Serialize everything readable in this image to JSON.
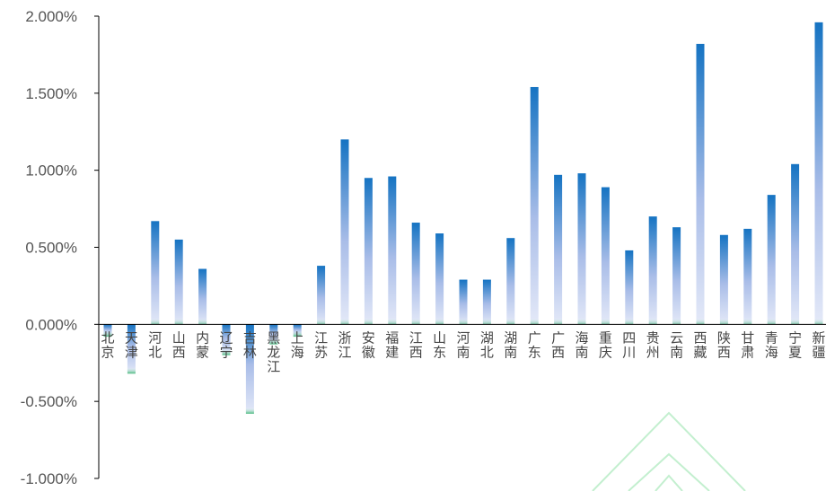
{
  "chart_data": {
    "type": "bar",
    "title": "",
    "xlabel": "",
    "ylabel": "",
    "ylim": [
      -1.0,
      2.0
    ],
    "y_ticks": [
      "2.000%",
      "1.500%",
      "1.000%",
      "0.500%",
      "0.000%",
      "-0.500%",
      "-1.000%"
    ],
    "y_tick_values": [
      2.0,
      1.5,
      1.0,
      0.5,
      0.0,
      -0.5,
      -1.0
    ],
    "unit": "%",
    "grid": false,
    "legend": "none",
    "categories": [
      "北京",
      "天津",
      "河北",
      "山西",
      "内蒙",
      "辽宁",
      "吉林",
      "黑龙江",
      "上海",
      "江苏",
      "浙江",
      "安徽",
      "福建",
      "江西",
      "山东",
      "河南",
      "湖北",
      "湖南",
      "广东",
      "广西",
      "海南",
      "重庆",
      "四川",
      "贵州",
      "云南",
      "西藏",
      "陕西",
      "甘肃",
      "青海",
      "宁夏",
      "新疆"
    ],
    "values": [
      -0.08,
      -0.32,
      0.67,
      0.55,
      0.36,
      -0.2,
      -0.58,
      -0.13,
      -0.08,
      0.38,
      1.2,
      0.95,
      0.96,
      0.66,
      0.59,
      0.29,
      0.29,
      0.56,
      1.54,
      0.97,
      0.98,
      0.89,
      0.48,
      0.7,
      0.63,
      1.82,
      0.58,
      0.62,
      0.84,
      1.04,
      1.96
    ],
    "colors": {
      "bar_top": "#1874c4",
      "bar_bottom": "#dfe6f7",
      "bar_tip": "#3cb878",
      "axis": "#000000",
      "watermark": "#b9ecc7"
    }
  }
}
